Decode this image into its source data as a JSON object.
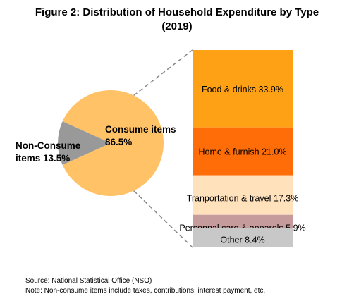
{
  "figure": {
    "title_line1": "Figure 2:  Distribution of Household Expenditure by Type",
    "title_line2": "(2019)",
    "source": "Source: National Statistical Office (NSO)",
    "note": "Note: Non-consume items include taxes, contributions, interest payment, etc."
  },
  "chart_data": [
    {
      "type": "pie",
      "slices": [
        {
          "label_line1": "Consume items",
          "label_line2": "86.5%",
          "value": 86.5,
          "color": "#ffc266"
        },
        {
          "label_line1": "Non-Consume",
          "label_line2": "items 13.5%",
          "value": 13.5,
          "color": "#999999"
        }
      ]
    },
    {
      "type": "bar",
      "stacked": true,
      "segments": [
        {
          "label": "Food & drinks 33.9%",
          "value": 33.9,
          "color": "#ffa114"
        },
        {
          "label": "Home & furnish 21.0%",
          "value": 21.0,
          "color": "#ff6d08"
        },
        {
          "label": "Tranportation & travel  17.3%",
          "value": 17.3,
          "color": "#ffe1bc"
        },
        {
          "label": "Personnal care & apparels 5.9%",
          "value": 5.9,
          "color": "#c59b9b"
        },
        {
          "label": "Other 8.4%",
          "value": 8.4,
          "color": "#c8c8c8"
        }
      ]
    }
  ]
}
